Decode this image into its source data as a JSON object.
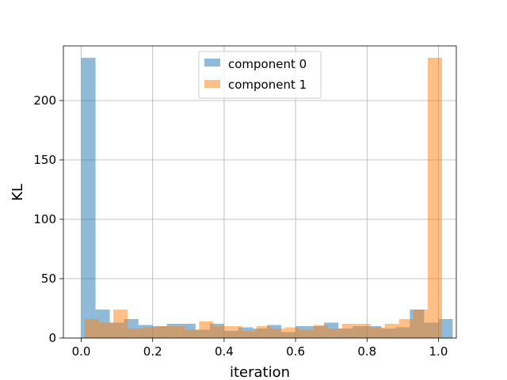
{
  "chart_data": {
    "type": "bar",
    "title": "",
    "xlabel": "iteration",
    "ylabel": "KL",
    "xlim": [
      -0.05,
      1.05
    ],
    "ylim": [
      0,
      246
    ],
    "xticks": [
      0.0,
      0.2,
      0.4,
      0.6,
      0.8,
      1.0
    ],
    "xtick_labels": [
      "0.0",
      "0.2",
      "0.4",
      "0.6",
      "0.8",
      "1.0"
    ],
    "yticks": [
      0,
      50,
      100,
      150,
      200
    ],
    "ytick_labels": [
      "0",
      "50",
      "100",
      "150",
      "200"
    ],
    "grid": true,
    "legend_position": "top-center",
    "series": [
      {
        "name": "component 0",
        "color": "#1f77b4",
        "opacity": 0.5,
        "bin_start": 0.0,
        "bin_width": 0.04,
        "values": [
          236,
          24,
          13,
          16,
          11,
          10,
          12,
          12,
          7,
          12,
          6,
          9,
          8,
          11,
          5,
          10,
          10,
          13,
          8,
          10,
          10,
          8,
          9,
          24,
          13,
          16
        ]
      },
      {
        "name": "component 1",
        "color": "#ff7f0e",
        "opacity": 0.5,
        "bin_start": 0.01,
        "bin_width": 0.04,
        "values": [
          16,
          13,
          24,
          8,
          9,
          10,
          10,
          7,
          14,
          10,
          10,
          6,
          10,
          8,
          9,
          7,
          11,
          8,
          12,
          12,
          9,
          12,
          16,
          24,
          236
        ]
      }
    ]
  }
}
